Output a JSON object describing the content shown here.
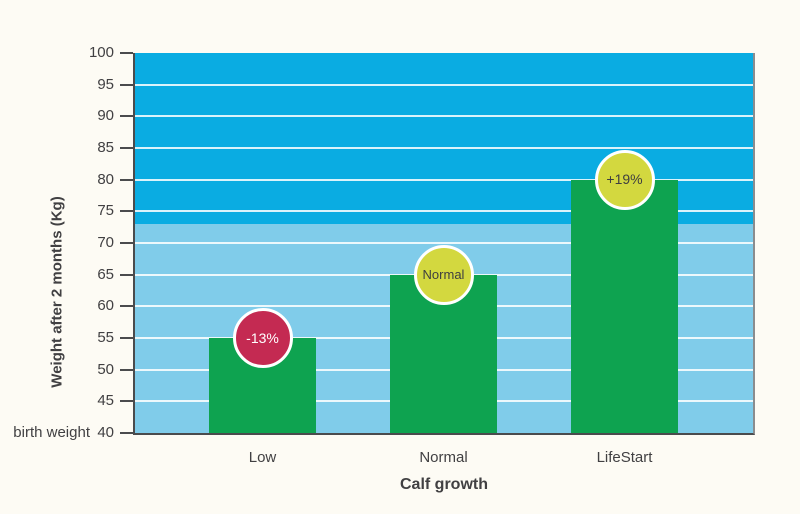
{
  "chart_data": {
    "type": "bar",
    "title": "",
    "xlabel": "Calf growth",
    "ylabel": "Weight after 2 months (Kg)",
    "baseline_label": "birth weight",
    "ylim": [
      40,
      100
    ],
    "ytick_step": 5,
    "yticks": [
      40,
      45,
      50,
      55,
      60,
      65,
      70,
      75,
      80,
      85,
      90,
      95,
      100
    ],
    "categories": [
      "Low",
      "Normal",
      "LifeStart"
    ],
    "values": [
      55,
      65,
      80
    ],
    "bar_color": "#0EA350",
    "badges": [
      {
        "label": "-13%",
        "bg": "#C42A52",
        "text_color": "#FFFFFF",
        "font_size": 14
      },
      {
        "label": "Normal",
        "bg": "#D3D83F",
        "text_color": "#3E3E40",
        "font_size": 13
      },
      {
        "label": "+19%",
        "bg": "#D3D83F",
        "text_color": "#3E3E40",
        "font_size": 14
      }
    ],
    "background_bands": [
      {
        "from": 73,
        "to": 100,
        "color": "#0AACE2"
      },
      {
        "from": 40,
        "to": 73,
        "color": "#80CCEA"
      }
    ],
    "gridline_color": "rgba(255,255,255,0.85)",
    "grid": true,
    "legend": false,
    "colors": {
      "page_background": "#FDFBF4",
      "axis_line": "#4A4B4D",
      "plot_right_border": "#8A8C8E",
      "text": "#414042"
    }
  }
}
